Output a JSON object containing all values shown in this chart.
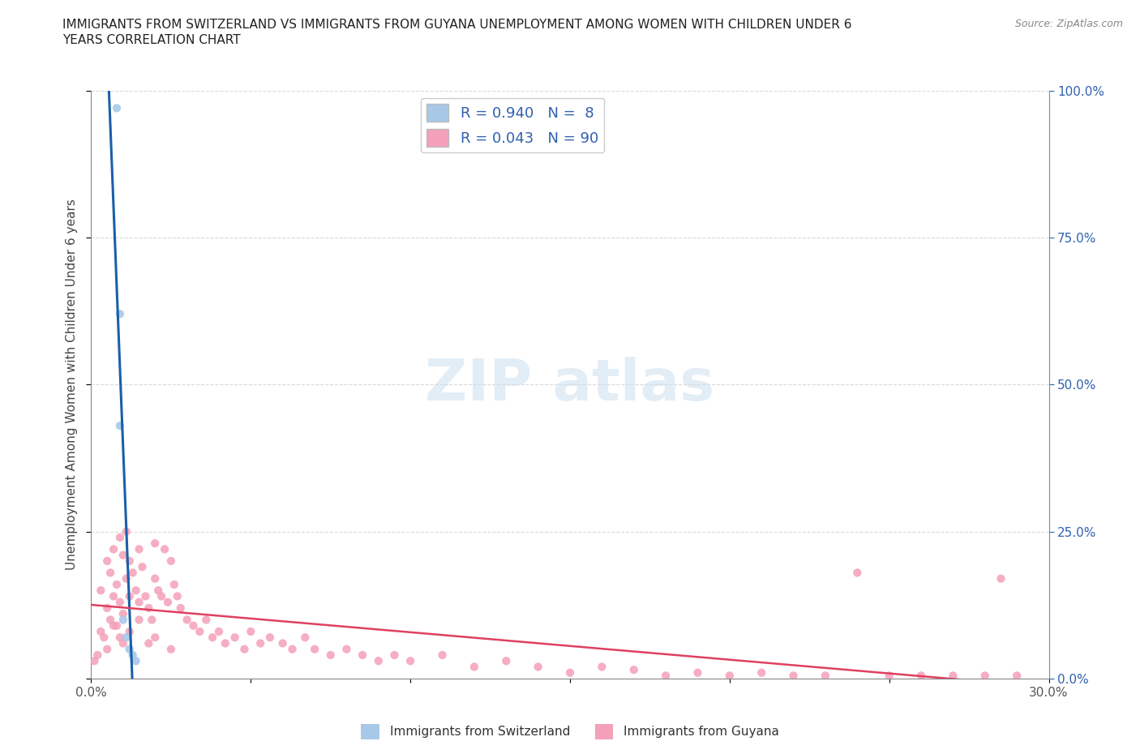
{
  "title_line1": "IMMIGRANTS FROM SWITZERLAND VS IMMIGRANTS FROM GUYANA UNEMPLOYMENT AMONG WOMEN WITH CHILDREN UNDER 6",
  "title_line2": "YEARS CORRELATION CHART",
  "source": "Source: ZipAtlas.com",
  "ylabel": "Unemployment Among Women with Children Under 6 years",
  "xlim": [
    0,
    0.3
  ],
  "ylim": [
    0,
    1.0
  ],
  "xtick_positions": [
    0.0,
    0.05,
    0.1,
    0.15,
    0.2,
    0.25,
    0.3
  ],
  "xtick_labels": [
    "0.0%",
    "",
    "",
    "",
    "",
    "",
    "30.0%"
  ],
  "ytick_positions": [
    0.0,
    0.25,
    0.5,
    0.75,
    1.0
  ],
  "ytick_labels_right": [
    "0.0%",
    "25.0%",
    "50.0%",
    "75.0%",
    "100.0%"
  ],
  "switzerland_R": 0.94,
  "switzerland_N": 8,
  "guyana_R": 0.043,
  "guyana_N": 90,
  "switzerland_color": "#a8c8e8",
  "guyana_color": "#f4a0b8",
  "switzerland_line_color": "#1a5fa8",
  "guyana_line_color": "#e04060",
  "legend_label_switzerland": "Immigrants from Switzerland",
  "legend_label_guyana": "Immigrants from Guyana",
  "watermark_text": "ZIPatlas",
  "background_color": "#ffffff",
  "grid_color": "#d0d0d0",
  "title_color": "#222222",
  "axis_label_color": "#444444",
  "right_tick_color": "#3060b0",
  "scatter_size": 55,
  "switzerland_x": [
    0.008,
    0.009,
    0.009,
    0.01,
    0.011,
    0.012,
    0.013,
    0.014
  ],
  "switzerland_y": [
    0.97,
    0.62,
    0.43,
    0.1,
    0.07,
    0.05,
    0.04,
    0.03
  ],
  "guyana_x": [
    0.001,
    0.002,
    0.003,
    0.003,
    0.004,
    0.005,
    0.005,
    0.006,
    0.006,
    0.007,
    0.007,
    0.008,
    0.008,
    0.009,
    0.009,
    0.01,
    0.01,
    0.011,
    0.011,
    0.012,
    0.012,
    0.013,
    0.014,
    0.015,
    0.015,
    0.016,
    0.017,
    0.018,
    0.019,
    0.02,
    0.02,
    0.021,
    0.022,
    0.023,
    0.024,
    0.025,
    0.026,
    0.027,
    0.028,
    0.03,
    0.032,
    0.034,
    0.036,
    0.038,
    0.04,
    0.042,
    0.045,
    0.048,
    0.05,
    0.053,
    0.056,
    0.06,
    0.063,
    0.067,
    0.07,
    0.075,
    0.08,
    0.085,
    0.09,
    0.095,
    0.1,
    0.11,
    0.12,
    0.13,
    0.14,
    0.15,
    0.16,
    0.17,
    0.18,
    0.19,
    0.2,
    0.21,
    0.22,
    0.23,
    0.24,
    0.25,
    0.26,
    0.27,
    0.28,
    0.285,
    0.29,
    0.005,
    0.007,
    0.009,
    0.01,
    0.012,
    0.015,
    0.018,
    0.02,
    0.025
  ],
  "guyana_y": [
    0.03,
    0.04,
    0.08,
    0.15,
    0.07,
    0.12,
    0.2,
    0.1,
    0.18,
    0.14,
    0.22,
    0.09,
    0.16,
    0.13,
    0.24,
    0.11,
    0.21,
    0.17,
    0.25,
    0.14,
    0.2,
    0.18,
    0.15,
    0.22,
    0.13,
    0.19,
    0.14,
    0.12,
    0.1,
    0.23,
    0.17,
    0.15,
    0.14,
    0.22,
    0.13,
    0.2,
    0.16,
    0.14,
    0.12,
    0.1,
    0.09,
    0.08,
    0.1,
    0.07,
    0.08,
    0.06,
    0.07,
    0.05,
    0.08,
    0.06,
    0.07,
    0.06,
    0.05,
    0.07,
    0.05,
    0.04,
    0.05,
    0.04,
    0.03,
    0.04,
    0.03,
    0.04,
    0.02,
    0.03,
    0.02,
    0.01,
    0.02,
    0.015,
    0.005,
    0.01,
    0.005,
    0.01,
    0.005,
    0.005,
    0.18,
    0.005,
    0.005,
    0.005,
    0.005,
    0.17,
    0.005,
    0.05,
    0.09,
    0.07,
    0.06,
    0.08,
    0.1,
    0.06,
    0.07,
    0.05
  ]
}
